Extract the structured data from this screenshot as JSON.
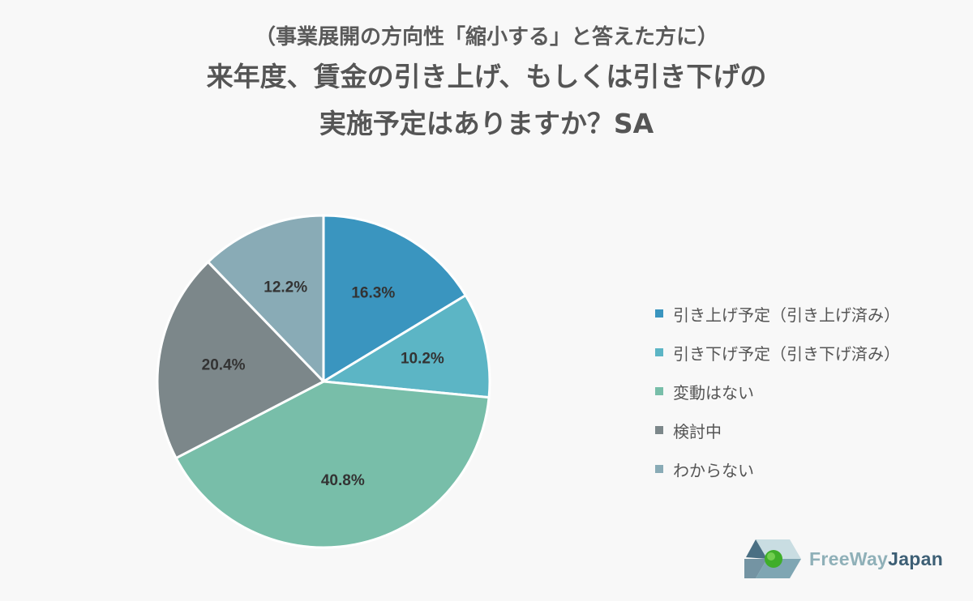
{
  "header": {
    "subtitle": "（事業展開の方向性「縮小する」と答えた方に）",
    "title_line1": "来年度、賃金の引き上げ、もしくは引き下げの",
    "title_line2": "実施予定はありますか？SA"
  },
  "chart_data": {
    "type": "pie",
    "start_angle": "12 o'clock",
    "direction": "clockwise",
    "legend_position": "right",
    "slices": [
      {
        "label": "引き上げ予定（引き上げ済み）",
        "value": 16.3,
        "display": "16.3%",
        "color": "#3a95bf"
      },
      {
        "label": "引き下げ予定（引き下げ済み）",
        "value": 10.2,
        "display": "10.2%",
        "color": "#5cb5c5"
      },
      {
        "label": "変動はない",
        "value": 40.8,
        "display": "40.8%",
        "color": "#78bea9"
      },
      {
        "label": "検討中",
        "value": 20.4,
        "display": "20.4%",
        "color": "#7c878a"
      },
      {
        "label": "わからない",
        "value": 12.2,
        "display": "12.2%",
        "color": "#89abb6"
      }
    ]
  },
  "logo": {
    "text_free": "FreeWay",
    "text_japan": "Japan"
  }
}
